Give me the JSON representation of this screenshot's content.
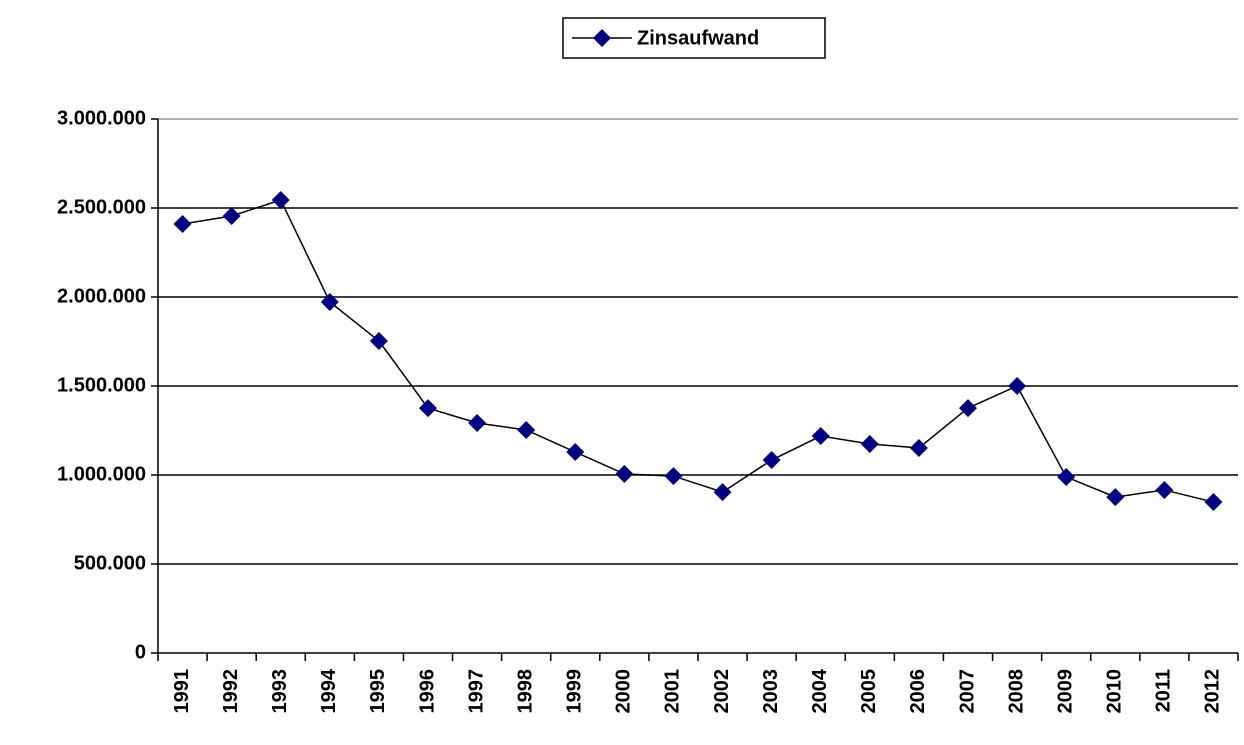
{
  "chart_data": {
    "type": "line",
    "categories": [
      "1991",
      "1992",
      "1993",
      "1994",
      "1995",
      "1996",
      "1997",
      "1998",
      "1999",
      "2000",
      "2001",
      "2002",
      "2003",
      "2004",
      "2005",
      "2006",
      "2007",
      "2008",
      "2009",
      "2010",
      "2011",
      "2012"
    ],
    "series": [
      {
        "name": "Zinsaufwand",
        "color": "#000080",
        "line_color": "#000000",
        "values": [
          2410000,
          2455000,
          2545000,
          1972000,
          1753000,
          1376000,
          1292000,
          1253000,
          1129000,
          1006000,
          994000,
          904000,
          1084000,
          1219000,
          1174000,
          1152000,
          1376000,
          1500000,
          989000,
          876000,
          916000,
          848000
        ]
      }
    ],
    "ylim": [
      0,
      3000000
    ],
    "yticks": [
      0,
      {
        "value": 500000,
        "label": "500.000"
      },
      {
        "value": 1000000,
        "label": "1.000.000"
      },
      {
        "value": 1500000,
        "label": "1.500.000"
      },
      {
        "value": 2000000,
        "label": "2.000.000"
      },
      {
        "value": 2500000,
        "label": "2.500.000"
      },
      {
        "value": 3000000,
        "label": "3.000.000"
      }
    ],
    "grid": true,
    "legend": "top"
  }
}
